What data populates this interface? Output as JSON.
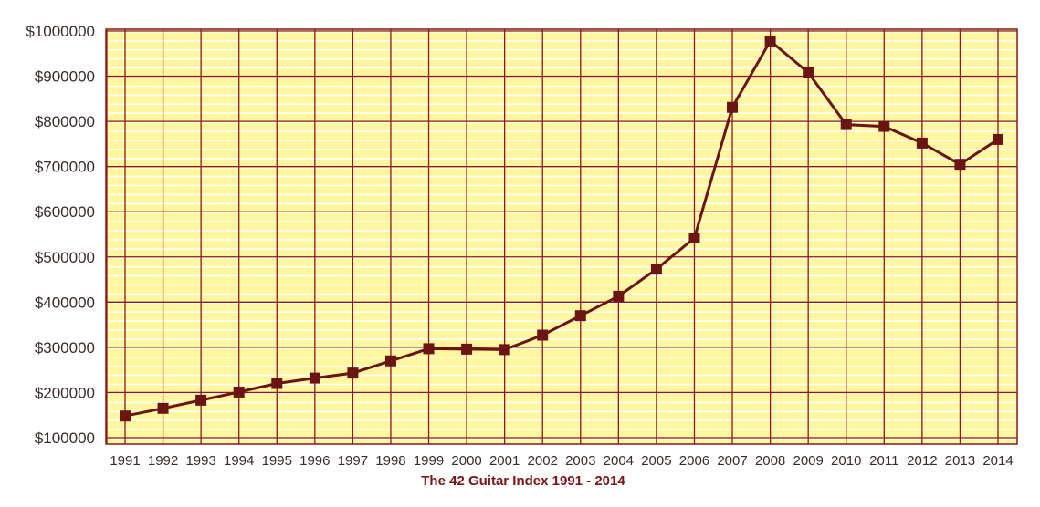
{
  "chart_data": {
    "type": "line",
    "title": "The 42 Guitar Index 1991 - 2014",
    "xlabel": "",
    "ylabel": "",
    "x": [
      "1991",
      "1992",
      "1993",
      "1994",
      "1995",
      "1996",
      "1997",
      "1998",
      "1999",
      "2000",
      "2001",
      "2002",
      "2003",
      "2004",
      "2005",
      "2006",
      "2007",
      "2008",
      "2009",
      "2010",
      "2011",
      "2012",
      "2013",
      "2014"
    ],
    "series": [
      {
        "values": [
          148000,
          165000,
          183000,
          201000,
          220000,
          232000,
          243000,
          270000,
          297000,
          296000,
          295000,
          327000,
          370000,
          413000,
          473000,
          542000,
          831000,
          978000,
          908000,
          793000,
          789000,
          752000,
          705000,
          760000
        ]
      }
    ],
    "ylim": [
      100000,
      1000000
    ],
    "yticks": [
      100000,
      200000,
      300000,
      400000,
      500000,
      600000,
      700000,
      800000,
      900000,
      1000000
    ],
    "ytick_labels": [
      "$100000",
      "$200000",
      "$300000",
      "$400000",
      "$500000",
      "$600000",
      "$700000",
      "$800000",
      "$900000",
      "$1000000"
    ],
    "grid": true,
    "colors": {
      "background": "#fff7a0",
      "grid_major": "#8b1a1a",
      "grid_minor": "#ffffff",
      "line": "#6b1414",
      "marker": "#6b1414"
    }
  }
}
